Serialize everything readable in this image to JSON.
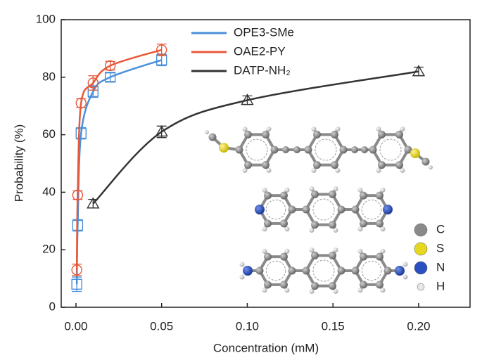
{
  "chart_data": {
    "type": "scatter",
    "xlabel": "Concentration (mM)",
    "ylabel": "Probability (%)",
    "xlim": [
      -0.0086,
      0.23
    ],
    "ylim": [
      0,
      100
    ],
    "xticks": [
      {
        "value": 0,
        "label": "0.00"
      },
      0.05,
      {
        "value": 0.1,
        "label": "0.10"
      },
      0.15,
      {
        "value": 0.2,
        "label": "0.20"
      }
    ],
    "yticks": [
      0,
      20,
      40,
      60,
      80,
      100
    ],
    "legend": "upper center",
    "series": [
      {
        "name": "OPE3-SMe",
        "color": "#4a90d9",
        "marker": "square",
        "x": [
          0.0005,
          0.001,
          0.003,
          0.01,
          0.02,
          0.05
        ],
        "values": [
          8,
          28.5,
          60.5,
          75,
          80,
          86
        ],
        "errors": [
          2.5,
          2,
          2,
          2,
          1.5,
          2
        ]
      },
      {
        "name": "OAE2-PY",
        "color": "#e8583a",
        "marker": "circle",
        "x": [
          0.0005,
          0.001,
          0.003,
          0.01,
          0.02,
          0.05
        ],
        "values": [
          13,
          39,
          71,
          78,
          84,
          89.5
        ],
        "errors": [
          2,
          1.5,
          1.5,
          2.5,
          1.5,
          2
        ]
      },
      {
        "name": "DATP-NH₂",
        "color": "#333333",
        "marker": "triangle",
        "x": [
          0.01,
          0.05,
          0.1,
          0.2
        ],
        "values": [
          36,
          61,
          72,
          82
        ],
        "errors": [
          1.5,
          2,
          1.5,
          1.5
        ]
      }
    ],
    "atom_legend": [
      {
        "label": "C",
        "color": "#8a8a8a"
      },
      {
        "label": "S",
        "color": "#e6d81e"
      },
      {
        "label": "N",
        "color": "#2a4fc0"
      },
      {
        "label": "H",
        "color": "#e8e8e8"
      }
    ]
  }
}
